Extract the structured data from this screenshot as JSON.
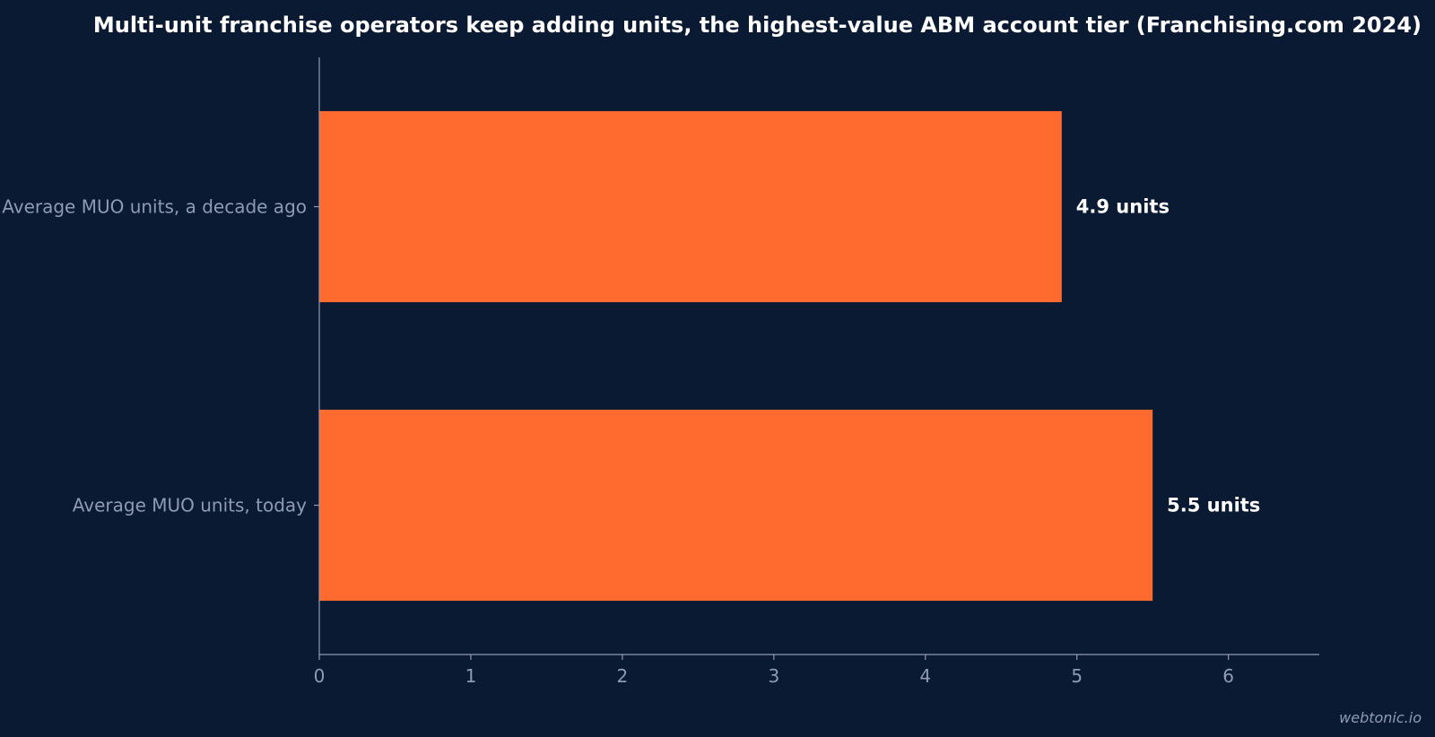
{
  "chart_data": {
    "type": "bar",
    "orientation": "horizontal",
    "title": "Multi-unit franchise operators keep adding units, the highest-value ABM account tier (Franchising.com 2024)",
    "categories": [
      "Average MUO units, a decade ago",
      "Average MUO units, today"
    ],
    "values": [
      4.9,
      5.5
    ],
    "data_labels": [
      "4.9 units",
      "5.5 units"
    ],
    "xlim": [
      0,
      6.6
    ],
    "xticks": [
      0,
      1,
      2,
      3,
      4,
      5,
      6
    ],
    "xlabel": "",
    "ylabel": "",
    "grid": false,
    "bar_color": "#ff6b2f"
  },
  "watermark": "webtonic.io",
  "colors": {
    "background": "#0b1a33",
    "bar": "#ff6b2f",
    "axis": "#8f9bb3",
    "text": "#ffffff"
  }
}
